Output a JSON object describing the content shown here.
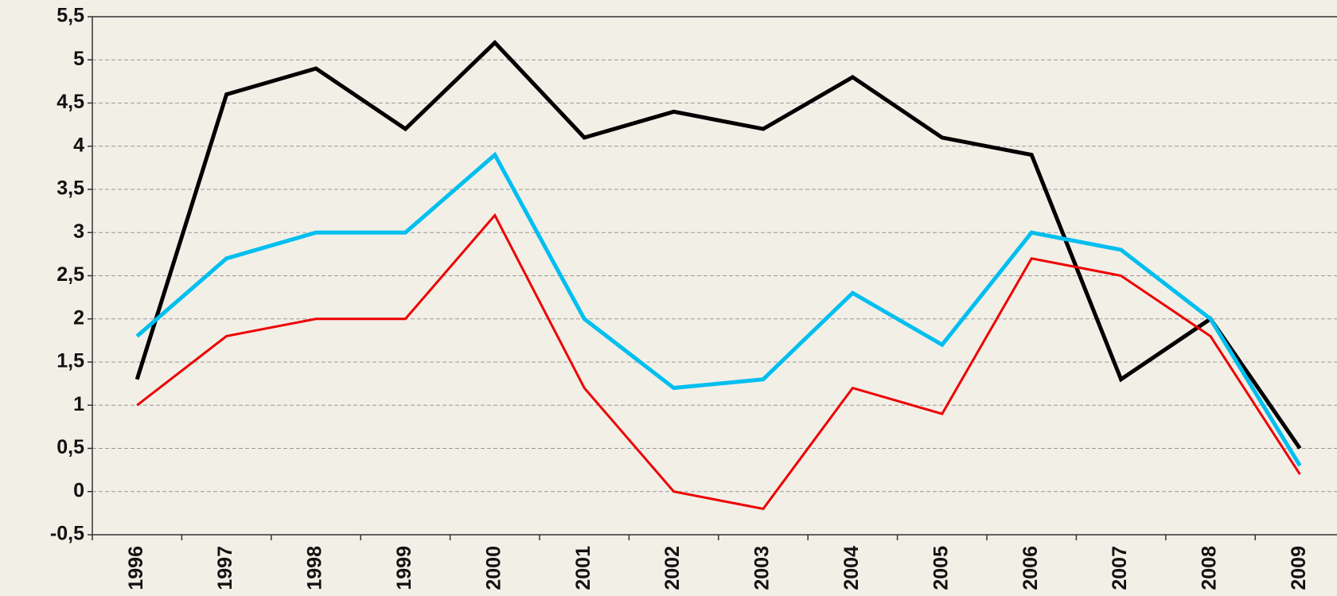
{
  "chart_data": {
    "type": "line",
    "categories": [
      "1996",
      "1997",
      "1998",
      "1999",
      "2000",
      "2001",
      "2002",
      "2003",
      "2004",
      "2005",
      "2006",
      "2007",
      "2008",
      "2009"
    ],
    "series": [
      {
        "color": "#000000",
        "values": [
          1.3,
          4.6,
          4.9,
          4.2,
          5.2,
          4.1,
          4.4,
          4.2,
          4.8,
          4.1,
          3.9,
          1.3,
          2.0,
          0.5
        ]
      },
      {
        "color": "#00bfef",
        "values": [
          1.8,
          2.7,
          3.0,
          3.0,
          3.9,
          2.0,
          1.2,
          1.3,
          2.3,
          1.7,
          3.0,
          2.8,
          2.0,
          0.3
        ]
      },
      {
        "color": "#ee0000",
        "values": [
          1.0,
          1.8,
          2.0,
          2.0,
          3.2,
          1.2,
          0.0,
          -0.2,
          1.2,
          0.9,
          2.7,
          2.5,
          1.8,
          0.2
        ]
      }
    ],
    "ylim": [
      -0.5,
      5.5
    ],
    "yticks": [
      {
        "value": -0.5,
        "label": "-0,5"
      },
      0,
      {
        "value": 0.5,
        "label": "0,5"
      },
      1,
      {
        "value": 1.5,
        "label": "1,5"
      },
      2,
      {
        "value": 2.5,
        "label": "2,5"
      },
      3,
      {
        "value": 3.5,
        "label": "3,5"
      },
      4,
      {
        "value": 4.5,
        "label": "4,5"
      },
      5,
      {
        "value": 5.5,
        "label": "5,5"
      }
    ],
    "grid": true
  }
}
